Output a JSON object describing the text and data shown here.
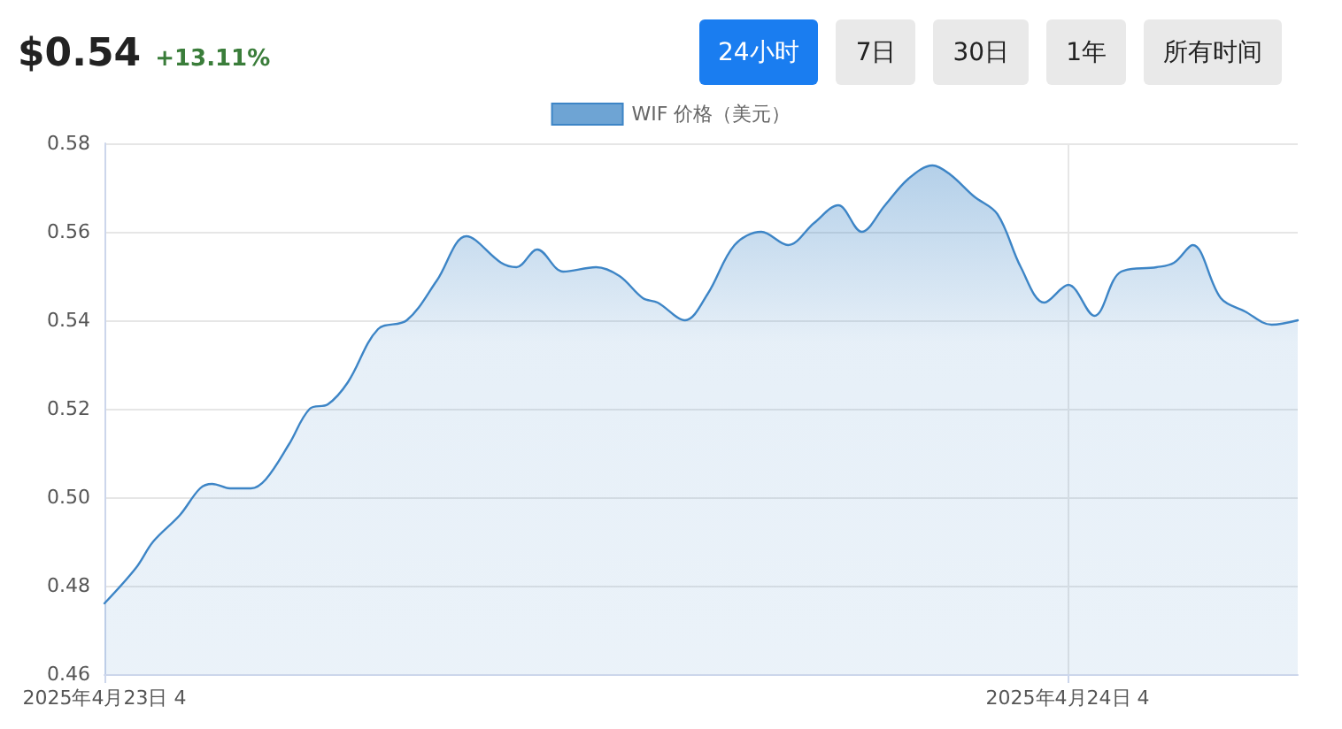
{
  "chart_data": {
    "type": "area",
    "title": "$0.54",
    "subtitle": "+13.11%",
    "annotations": [
      "24小时",
      "7日",
      "30日",
      "1年",
      "所有时间"
    ],
    "x": [
      "2025-04-23T04:00",
      "2025-04-23T04:47",
      "2025-04-23T05:13",
      "2025-04-23T05:53",
      "2025-04-23T06:23",
      "2025-04-23T06:41",
      "2025-04-23T07:08",
      "2025-04-23T07:39",
      "2025-04-23T08:01",
      "2025-04-23T08:36",
      "2025-04-23T09:07",
      "2025-04-23T09:34",
      "2025-04-23T10:04",
      "2025-04-23T10:49",
      "2025-04-23T11:32",
      "2025-04-23T12:17",
      "2025-04-23T13:01",
      "2025-04-23T13:53",
      "2025-04-23T14:16",
      "2025-04-23T14:47",
      "2025-04-23T15:26",
      "2025-04-23T16:15",
      "2025-04-23T16:50",
      "2025-04-23T17:25",
      "2025-04-23T17:47",
      "2025-04-23T18:28",
      "2025-04-23T19:02",
      "2025-04-23T19:42",
      "2025-04-23T20:22",
      "2025-04-23T21:02",
      "2025-04-23T21:41",
      "2025-04-23T22:17",
      "2025-04-23T22:52",
      "2025-04-23T23:27",
      "2025-04-24T00:02",
      "2025-04-24T00:38",
      "2025-04-24T01:04",
      "2025-04-24T01:40",
      "2025-04-24T02:15",
      "2025-04-24T02:50",
      "2025-04-24T03:25",
      "2025-04-24T04:01",
      "2025-04-24T04:40",
      "2025-04-24T05:20",
      "2025-04-24T06:13",
      "2025-04-24T06:39",
      "2025-04-24T07:07",
      "2025-04-24T07:49",
      "2025-04-24T08:25",
      "2025-04-24T09:05",
      "2025-04-24T09:44"
    ],
    "series": [
      {
        "name": "WIF 价格（美元）",
        "color": "#3d85c6",
        "values": [
          0.476,
          0.484,
          0.49,
          0.496,
          0.502,
          0.503,
          0.502,
          0.502,
          0.504,
          0.512,
          0.52,
          0.521,
          0.526,
          0.538,
          0.54,
          0.549,
          0.559,
          0.553,
          0.552,
          0.556,
          0.551,
          0.552,
          0.55,
          0.545,
          0.544,
          0.54,
          0.546,
          0.557,
          0.56,
          0.557,
          0.562,
          0.566,
          0.56,
          0.566,
          0.572,
          0.575,
          0.573,
          0.568,
          0.564,
          0.552,
          0.544,
          0.548,
          0.541,
          0.551,
          0.552,
          0.553,
          0.557,
          0.545,
          0.542,
          0.539,
          0.54
        ]
      }
    ],
    "xlim": [
      "2025-04-23T04:00",
      "2025-04-24T09:44"
    ],
    "xticks": [
      {
        "value": "2025-04-23T04:00",
        "label": "2025年4月23日 4"
      },
      {
        "value": "2025-04-24T04:00",
        "label": "2025年4月24日 4"
      }
    ],
    "ylim": [
      0.46,
      0.58
    ],
    "yticks": [
      {
        "value": 0.46,
        "label": "0.46"
      },
      {
        "value": 0.48,
        "label": "0.48"
      },
      {
        "value": 0.5,
        "label": "0.50"
      },
      {
        "value": 0.52,
        "label": "0.52"
      },
      {
        "value": 0.54,
        "label": "0.54"
      },
      {
        "value": 0.56,
        "label": "0.56"
      },
      {
        "value": 0.58,
        "label": "0.58"
      }
    ],
    "grid": true,
    "legend": "top",
    "marker": "none",
    "line_style": "solid"
  }
}
